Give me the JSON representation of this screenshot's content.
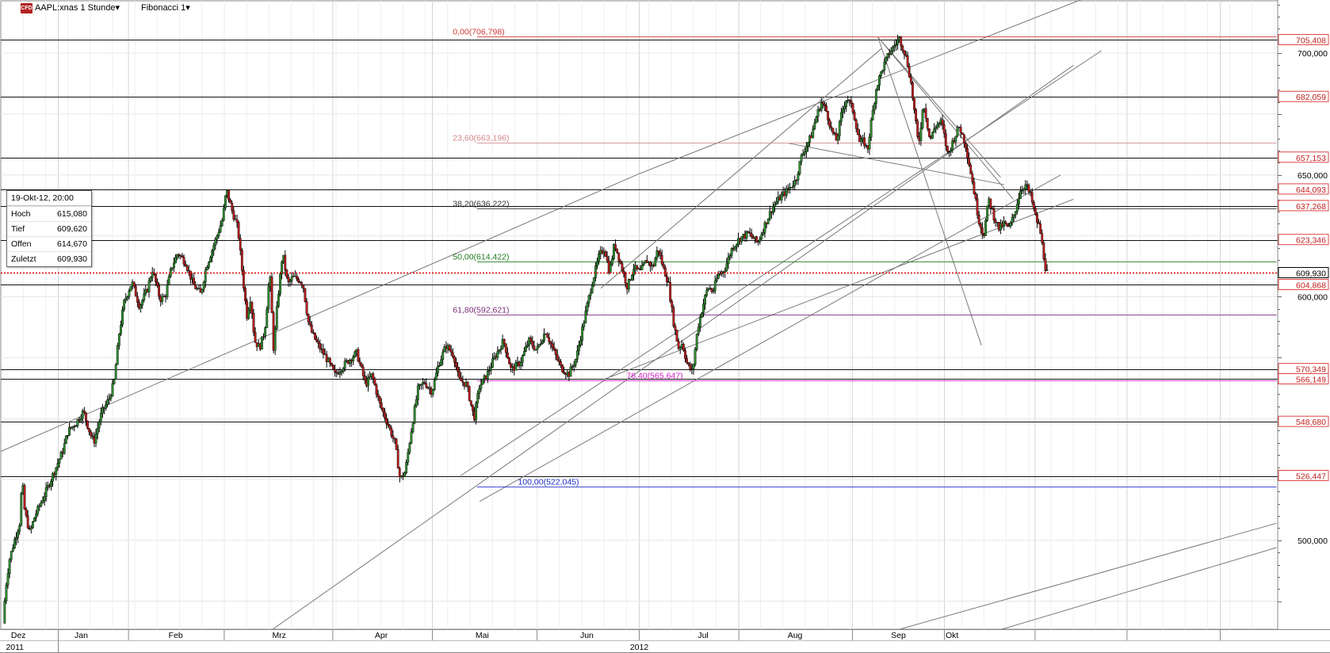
{
  "header": {
    "badge": "CFD",
    "symbol_label": "AAPL:xnas 1 Stunde▾",
    "indicator_label": "Fibonacci 1▾"
  },
  "infobox": {
    "date": "19-Okt-12, 20:00",
    "rows": [
      {
        "label": "Hoch",
        "value": "615,080"
      },
      {
        "label": "Tief",
        "value": "609,620"
      },
      {
        "label": "Offen",
        "value": "614,670"
      },
      {
        "label": "Zuletzt",
        "value": "609,930"
      }
    ]
  },
  "chart_data": {
    "type": "candlestick",
    "ylim": [
      463.5,
      721.5
    ],
    "yticks": [
      {
        "value": 700,
        "label": "700,000"
      },
      {
        "value": 650,
        "label": "650,000"
      },
      {
        "value": 600,
        "label": "600,000"
      },
      {
        "value": 500,
        "label": "500,000"
      }
    ],
    "x_months": [
      "Dez",
      "Jan",
      "Feb",
      "Mrz",
      "Apr",
      "Mai",
      "Jun",
      "Jul",
      "Aug",
      "Sep",
      "Okt"
    ],
    "x_years": [
      "2011",
      "2012"
    ],
    "horizontal_levels": [
      {
        "value": 705.408,
        "label": "705,408"
      },
      {
        "value": 682.059,
        "label": "682,059"
      },
      {
        "value": 657.153,
        "label": "657,153"
      },
      {
        "value": 644.093,
        "label": "644,093"
      },
      {
        "value": 637.268,
        "label": "637,268"
      },
      {
        "value": 623.346,
        "label": "623,346"
      },
      {
        "value": 604.868,
        "label": "604,868"
      },
      {
        "value": 570.349,
        "label": "570,349"
      },
      {
        "value": 566.149,
        "label": "566,149"
      },
      {
        "value": 548.68,
        "label": "548,680"
      },
      {
        "value": 526.447,
        "label": "526,447"
      }
    ],
    "last_price": {
      "value": 609.93,
      "label": "609,930",
      "color": "#e00000"
    },
    "fibonacci": [
      {
        "pct": "0,00",
        "value": 706.798,
        "label": "0,00(706,798)",
        "color": "#d13838"
      },
      {
        "pct": "23,60",
        "value": 663.196,
        "label": "23,60(663,196)",
        "color": "#d28a8a"
      },
      {
        "pct": "38,20",
        "value": 636.222,
        "label": "38,20(636,222)",
        "color": "#333333"
      },
      {
        "pct": "50,00",
        "value": 614.422,
        "label": "50,00(614,422)",
        "color": "#1e7a1e"
      },
      {
        "pct": "61,80",
        "value": 592.621,
        "label": "61,80(592,621)",
        "color": "#7a2a7a"
      },
      {
        "pct": "76,40",
        "value": 565.647,
        "label": "76,40(565,647)",
        "color": "#d620c8"
      },
      {
        "pct": "100,00",
        "value": 522.045,
        "label": "100,00(522,045)",
        "color": "#2030c8"
      }
    ],
    "price_path": [
      [
        0.003,
        466
      ],
      [
        0.005,
        480
      ],
      [
        0.008,
        492
      ],
      [
        0.012,
        500
      ],
      [
        0.016,
        507
      ],
      [
        0.018,
        525
      ],
      [
        0.02,
        512
      ],
      [
        0.024,
        503
      ],
      [
        0.028,
        510
      ],
      [
        0.035,
        518
      ],
      [
        0.043,
        528
      ],
      [
        0.05,
        537
      ],
      [
        0.054,
        545
      ],
      [
        0.06,
        548
      ],
      [
        0.066,
        553
      ],
      [
        0.07,
        546
      ],
      [
        0.074,
        540
      ],
      [
        0.08,
        552
      ],
      [
        0.086,
        558
      ],
      [
        0.09,
        565
      ],
      [
        0.094,
        585
      ],
      [
        0.098,
        598
      ],
      [
        0.104,
        606
      ],
      [
        0.11,
        596
      ],
      [
        0.116,
        603
      ],
      [
        0.12,
        611
      ],
      [
        0.126,
        599
      ],
      [
        0.13,
        600
      ],
      [
        0.135,
        612
      ],
      [
        0.14,
        618
      ],
      [
        0.146,
        614
      ],
      [
        0.152,
        605
      ],
      [
        0.158,
        601
      ],
      [
        0.162,
        612
      ],
      [
        0.17,
        624
      ],
      [
        0.175,
        632
      ],
      [
        0.178,
        644
      ],
      [
        0.182,
        636
      ],
      [
        0.187,
        628
      ],
      [
        0.19,
        612
      ],
      [
        0.194,
        592
      ],
      [
        0.197,
        600
      ],
      [
        0.2,
        582
      ],
      [
        0.204,
        579
      ],
      [
        0.208,
        586
      ],
      [
        0.212,
        610
      ],
      [
        0.215,
        578
      ],
      [
        0.218,
        598
      ],
      [
        0.222,
        618
      ],
      [
        0.226,
        605
      ],
      [
        0.23,
        608
      ],
      [
        0.235,
        607
      ],
      [
        0.238,
        605
      ],
      [
        0.242,
        590
      ],
      [
        0.245,
        585
      ],
      [
        0.25,
        580
      ],
      [
        0.256,
        575
      ],
      [
        0.263,
        568
      ],
      [
        0.272,
        573
      ],
      [
        0.28,
        577
      ],
      [
        0.287,
        564
      ],
      [
        0.292,
        568
      ],
      [
        0.298,
        556
      ],
      [
        0.305,
        547
      ],
      [
        0.31,
        540
      ],
      [
        0.314,
        525
      ],
      [
        0.318,
        528
      ],
      [
        0.323,
        546
      ],
      [
        0.328,
        562
      ],
      [
        0.333,
        565
      ],
      [
        0.339,
        561
      ],
      [
        0.344,
        572
      ],
      [
        0.35,
        580
      ],
      [
        0.356,
        576
      ],
      [
        0.36,
        566
      ],
      [
        0.366,
        564
      ],
      [
        0.372,
        550
      ],
      [
        0.376,
        563
      ],
      [
        0.382,
        568
      ],
      [
        0.388,
        575
      ],
      [
        0.395,
        582
      ],
      [
        0.401,
        570
      ],
      [
        0.408,
        573
      ],
      [
        0.415,
        582
      ],
      [
        0.421,
        578
      ],
      [
        0.428,
        586
      ],
      [
        0.434,
        578
      ],
      [
        0.44,
        571
      ],
      [
        0.446,
        568
      ],
      [
        0.452,
        575
      ],
      [
        0.458,
        590
      ],
      [
        0.464,
        605
      ],
      [
        0.47,
        617
      ],
      [
        0.474,
        620
      ],
      [
        0.478,
        610
      ],
      [
        0.482,
        622
      ],
      [
        0.487,
        613
      ],
      [
        0.492,
        604
      ],
      [
        0.497,
        612
      ],
      [
        0.502,
        610
      ],
      [
        0.507,
        615
      ],
      [
        0.512,
        612
      ],
      [
        0.516,
        620
      ],
      [
        0.52,
        612
      ],
      [
        0.524,
        606
      ],
      [
        0.528,
        590
      ],
      [
        0.532,
        579
      ],
      [
        0.535,
        581
      ],
      [
        0.539,
        572
      ],
      [
        0.543,
        569
      ],
      [
        0.547,
        587
      ],
      [
        0.551,
        596
      ],
      [
        0.555,
        604
      ],
      [
        0.559,
        602
      ],
      [
        0.563,
        609
      ],
      [
        0.568,
        611
      ],
      [
        0.574,
        620
      ],
      [
        0.58,
        624
      ],
      [
        0.587,
        626
      ],
      [
        0.594,
        622
      ],
      [
        0.6,
        630
      ],
      [
        0.606,
        637
      ],
      [
        0.612,
        641
      ],
      [
        0.618,
        644
      ],
      [
        0.624,
        648
      ],
      [
        0.628,
        657
      ],
      [
        0.632,
        662
      ],
      [
        0.636,
        666
      ],
      [
        0.64,
        674
      ],
      [
        0.644,
        680
      ],
      [
        0.648,
        676
      ],
      [
        0.652,
        668
      ],
      [
        0.656,
        664
      ],
      [
        0.66,
        676
      ],
      [
        0.664,
        682
      ],
      [
        0.669,
        676
      ],
      [
        0.674,
        663
      ],
      [
        0.677,
        664
      ],
      [
        0.68,
        660
      ],
      [
        0.683,
        672
      ],
      [
        0.687,
        686
      ],
      [
        0.692,
        694
      ],
      [
        0.697,
        700
      ],
      [
        0.701,
        703
      ],
      [
        0.705,
        706
      ],
      [
        0.708,
        702
      ],
      [
        0.711,
        697
      ],
      [
        0.714,
        688
      ],
      [
        0.717,
        675
      ],
      [
        0.72,
        662
      ],
      [
        0.724,
        680
      ],
      [
        0.729,
        664
      ],
      [
        0.733,
        670
      ],
      [
        0.738,
        672
      ],
      [
        0.743,
        658
      ],
      [
        0.747,
        664
      ],
      [
        0.752,
        670
      ],
      [
        0.757,
        662
      ],
      [
        0.762,
        648
      ],
      [
        0.767,
        632
      ],
      [
        0.771,
        625
      ],
      [
        0.775,
        640
      ],
      [
        0.779,
        633
      ],
      [
        0.783,
        628
      ],
      [
        0.787,
        630
      ],
      [
        0.791,
        628
      ],
      [
        0.795,
        634
      ],
      [
        0.8,
        644
      ],
      [
        0.804,
        646
      ],
      [
        0.808,
        641
      ],
      [
        0.812,
        632
      ],
      [
        0.815,
        628
      ],
      [
        0.818,
        617
      ],
      [
        0.82,
        610
      ]
    ]
  }
}
